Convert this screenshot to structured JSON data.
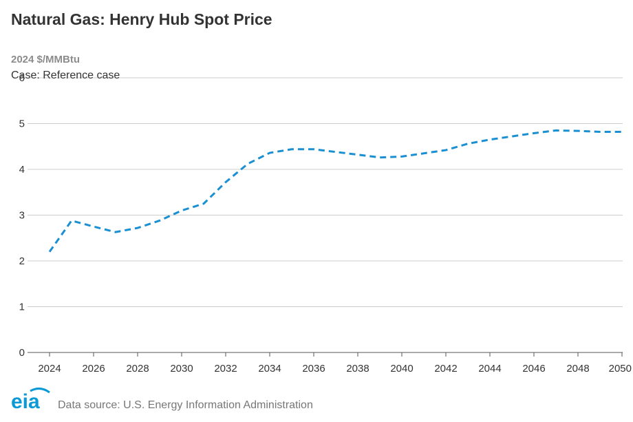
{
  "header": {
    "title": "Natural Gas: Henry Hub Spot Price",
    "units": "2024 $/MMBtu",
    "case_label": "Case: Reference case"
  },
  "footer": {
    "source": "Data source: U.S. Energy Information Administration",
    "logo_text": "eia"
  },
  "colors": {
    "series": "#1a8fd1",
    "grid": "#cccccc",
    "axis": "#555555",
    "logo": "#0a9ad6"
  },
  "chart_data": {
    "type": "line",
    "title": "Natural Gas: Henry Hub Spot Price",
    "ylabel": "2024 $/MMBtu",
    "xlabel": "",
    "xlim": [
      2024,
      2050
    ],
    "ylim": [
      0,
      6
    ],
    "yticks": [
      0,
      1,
      2,
      3,
      4,
      5,
      6
    ],
    "xticks": [
      2024,
      2026,
      2028,
      2030,
      2032,
      2034,
      2036,
      2038,
      2040,
      2042,
      2044,
      2046,
      2048,
      2050
    ],
    "grid": true,
    "line_style": "dashed",
    "x": [
      2024,
      2025,
      2026,
      2027,
      2028,
      2029,
      2030,
      2031,
      2032,
      2033,
      2034,
      2035,
      2036,
      2037,
      2038,
      2039,
      2040,
      2041,
      2042,
      2043,
      2044,
      2045,
      2046,
      2047,
      2048,
      2049,
      2050
    ],
    "series": [
      {
        "name": "",
        "values": [
          2.2,
          2.88,
          2.75,
          2.63,
          2.72,
          2.88,
          3.1,
          3.25,
          3.72,
          4.12,
          4.36,
          4.44,
          4.44,
          4.38,
          4.32,
          4.26,
          4.28,
          4.35,
          4.42,
          4.56,
          4.65,
          4.72,
          4.79,
          4.85,
          4.84,
          4.82,
          4.82
        ]
      }
    ]
  }
}
